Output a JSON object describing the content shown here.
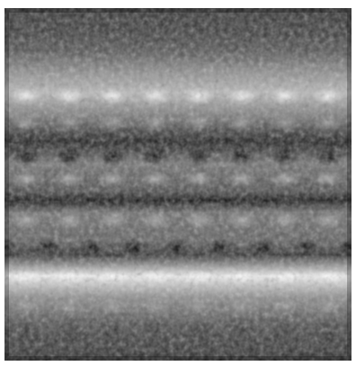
{
  "image": {
    "kind": "grayscale repeating lattice texture (micrograph-like)",
    "background_color": "#ffffff",
    "palette": {
      "dark": "#0a0a0a",
      "mid": "#5b5b5b",
      "light": "#f2f2f2"
    }
  }
}
